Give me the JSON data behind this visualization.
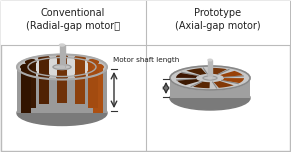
{
  "title_left": "Conventional",
  "subtitle_left": "(Radial-gap motor）",
  "title_right": "Prototype",
  "subtitle_right": "(Axial-gap motor)",
  "annotation": "Motor shaft length",
  "bg_color": "#f5f5f5",
  "border_color": "#bbbbbb",
  "text_color": "#222222",
  "divider_color": "#bbbbbb",
  "header_bg": "#ffffff",
  "fig_width": 2.91,
  "fig_height": 1.52,
  "dpi": 100
}
